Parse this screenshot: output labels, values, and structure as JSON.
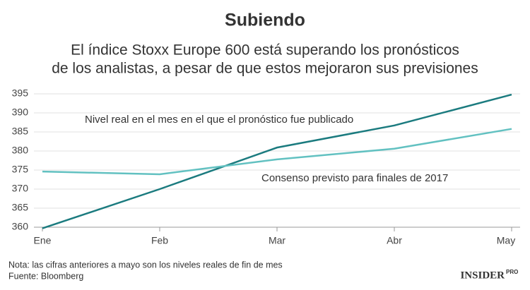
{
  "chart_data": {
    "type": "line",
    "title": "Subiendo",
    "subtitle": [
      "El índice Stoxx Europe 600 está superando los pronósticos",
      "de los analistas, a pesar de que estos mejoraron sus previsiones"
    ],
    "categories": [
      "Ene",
      "Feb",
      "Mar",
      "Abr",
      "May"
    ],
    "series": [
      {
        "name": "Nivel real en el mes en el que el pronóstico fue publicado",
        "color": "#1b7b7f",
        "values": [
          359.7,
          370,
          380.9,
          386.7,
          394.8
        ]
      },
      {
        "name": "Consenso previsto para finales de 2017",
        "color": "#62c1c1",
        "values": [
          374.6,
          373.9,
          377.8,
          380.6,
          385.8
        ]
      }
    ],
    "ylim": [
      360,
      395
    ],
    "yticks": [
      360,
      365,
      370,
      375,
      380,
      385,
      390,
      395
    ],
    "grid": true,
    "notes": [
      "Nota: las cifras anteriores a mayo son los niveles reales de fin de mes",
      "Fuente: Bloomberg"
    ],
    "brand": {
      "name": "INSIDER",
      "tag": "PRO"
    }
  }
}
